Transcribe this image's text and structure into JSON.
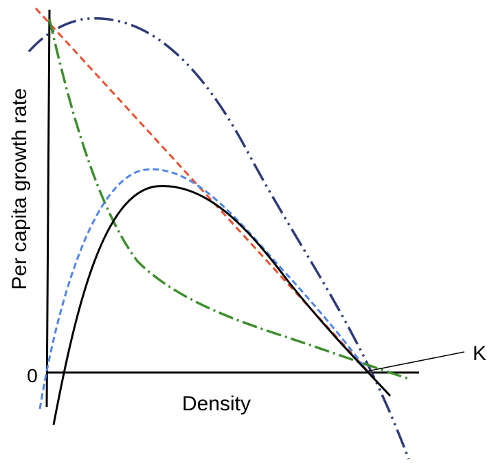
{
  "diagram": {
    "ylabel": "Per capita growth rate",
    "xlabel": "Density",
    "zero_label": "0",
    "k_label": "K"
  },
  "curves": [
    {
      "id": "navy-dash-dot-dot",
      "color": "#2e3a78",
      "style": "dash-dot-dot"
    },
    {
      "id": "red-dashed",
      "color": "#e8502e",
      "style": "dashed"
    },
    {
      "id": "green-dash-dot",
      "color": "#3e8e2e",
      "style": "dash-dot"
    },
    {
      "id": "blue-dashed",
      "color": "#4f86e8",
      "style": "dashed"
    },
    {
      "id": "black-solid",
      "color": "#000000",
      "style": "solid"
    }
  ]
}
